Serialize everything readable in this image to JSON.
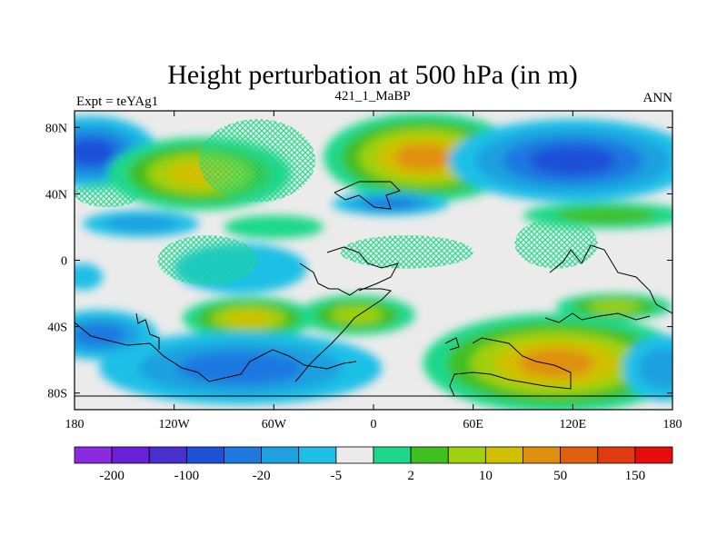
{
  "chart_data": {
    "type": "heatmap",
    "title": "Height perturbation at 500 hPa (in m)",
    "left_label": "Expt = teYAg1",
    "center_label": "421_1_MaBP",
    "right_label": "ANN",
    "xlim": [
      -180,
      180
    ],
    "ylim": [
      -90,
      90
    ],
    "x_ticks": [
      {
        "value": -180,
        "label": "180"
      },
      {
        "value": -120,
        "label": "120W"
      },
      {
        "value": -60,
        "label": "60W"
      },
      {
        "value": 0,
        "label": "0"
      },
      {
        "value": 60,
        "label": "60E"
      },
      {
        "value": 120,
        "label": "120E"
      },
      {
        "value": 180,
        "label": "180"
      }
    ],
    "y_ticks": [
      {
        "value": 80,
        "label": "80N"
      },
      {
        "value": 40,
        "label": "40N"
      },
      {
        "value": 0,
        "label": "0"
      },
      {
        "value": -40,
        "label": "40S"
      },
      {
        "value": -80,
        "label": "80S"
      }
    ],
    "colorbar": {
      "colors": [
        "#8a2be2",
        "#6a1fd9",
        "#4a2fd0",
        "#1e50d8",
        "#1f78e0",
        "#1fa0e0",
        "#1ec0e6",
        "#ebebeb",
        "#1ed88a",
        "#40c020",
        "#a0d010",
        "#d0c000",
        "#e09010",
        "#e06010",
        "#e03a10",
        "#e80c0c"
      ],
      "tick_labels": [
        {
          "boundary": 1,
          "label": "-200"
        },
        {
          "boundary": 3,
          "label": "-100"
        },
        {
          "boundary": 5,
          "label": "-20"
        },
        {
          "boundary": 7,
          "label": "-5"
        },
        {
          "boundary": 9,
          "label": "2"
        },
        {
          "boundary": 11,
          "label": "10"
        },
        {
          "boundary": 13,
          "label": "50"
        },
        {
          "boundary": 15,
          "label": "150"
        }
      ]
    },
    "features": [
      {
        "name": "north-polar-low-left",
        "lon": -170,
        "lat": 65,
        "rlon": 40,
        "rlat": 22,
        "level": 3
      },
      {
        "name": "north-high-120w",
        "lon": -105,
        "lat": 52,
        "rlon": 55,
        "rlat": 22,
        "level": 11
      },
      {
        "name": "north-high-30e",
        "lon": 30,
        "lat": 62,
        "rlon": 60,
        "rlat": 27,
        "level": 12
      },
      {
        "name": "north-low-120e",
        "lon": 120,
        "lat": 60,
        "rlon": 75,
        "rlat": 25,
        "level": 3
      },
      {
        "name": "north-mid-low-20e",
        "lon": 10,
        "lat": 34,
        "rlon": 35,
        "rlat": 7,
        "level": 4
      },
      {
        "name": "north-band-140e",
        "lon": 140,
        "lat": 27,
        "rlon": 50,
        "rlat": 8,
        "level": 9
      },
      {
        "name": "north-low-140w",
        "lon": -140,
        "lat": 22,
        "rlon": 35,
        "rlat": 8,
        "level": 5
      },
      {
        "name": "north-band-60w",
        "lon": -60,
        "lat": 20,
        "rlon": 30,
        "rlat": 7,
        "level": 8
      },
      {
        "name": "tropical-low-60w",
        "lon": -80,
        "lat": -5,
        "rlon": 40,
        "rlat": 15,
        "level": 6
      },
      {
        "name": "tropical-low-190w",
        "lon": -175,
        "lat": -10,
        "rlon": 12,
        "rlat": 8,
        "level": 6
      },
      {
        "name": "south-high-75w",
        "lon": -75,
        "lat": -35,
        "rlon": 40,
        "rlat": 13,
        "level": 11
      },
      {
        "name": "south-high-10w",
        "lon": -10,
        "lat": -33,
        "rlon": 35,
        "rlat": 12,
        "level": 10
      },
      {
        "name": "south-band-150e",
        "lon": 145,
        "lat": -28,
        "rlon": 35,
        "rlat": 8,
        "level": 10
      },
      {
        "name": "south-high-120e",
        "lon": 110,
        "lat": -62,
        "rlon": 80,
        "rlat": 30,
        "level": 12
      },
      {
        "name": "south-polar-low-80w",
        "lon": -80,
        "lat": -65,
        "rlon": 85,
        "rlat": 22,
        "level": 4
      },
      {
        "name": "south-low-150w",
        "lon": -165,
        "lat": -45,
        "rlon": 35,
        "rlat": 15,
        "level": 4
      },
      {
        "name": "south-low-150e",
        "lon": 175,
        "lat": -65,
        "rlon": 25,
        "rlat": 20,
        "level": 5
      }
    ],
    "hatched_regions": [
      {
        "lon": -160,
        "lat": 40,
        "rlon": 20,
        "rlat": 8
      },
      {
        "lon": -70,
        "lat": 60,
        "rlon": 35,
        "rlat": 25
      },
      {
        "lon": -100,
        "lat": 0,
        "rlon": 30,
        "rlat": 15
      },
      {
        "lon": 20,
        "lat": 5,
        "rlon": 40,
        "rlat": 10
      },
      {
        "lon": 110,
        "lat": 10,
        "rlon": 25,
        "rlat": 15
      }
    ]
  }
}
